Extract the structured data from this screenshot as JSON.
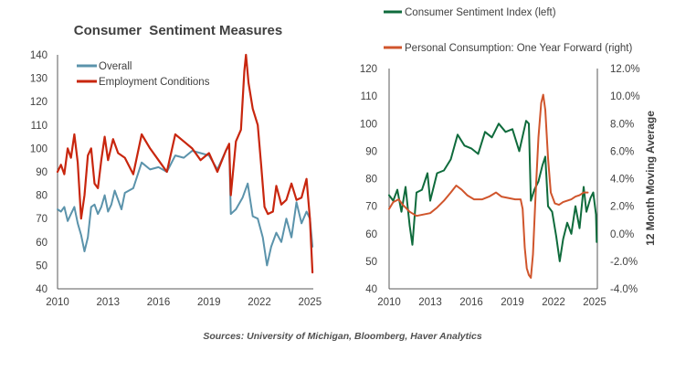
{
  "source": "Sources: University of Michigan, Bloomberg, Haver Analytics",
  "colors": {
    "overall": "#5b93ab",
    "employment": "#c8260e",
    "sentiment_index": "#0f6b3c",
    "consumption": "#d0552c",
    "text": "#404040",
    "axis": "#595959"
  },
  "chart_data": [
    {
      "type": "line",
      "title": "Consumer  Sentiment Measures",
      "xlabel": "",
      "ylabel": "",
      "xlim": [
        2010,
        2025.2
      ],
      "ylim": [
        40,
        140
      ],
      "x_ticks": [
        "2010",
        "2013",
        "2016",
        "2019",
        "2022",
        "2025"
      ],
      "y_ticks": [
        "40",
        "50",
        "60",
        "70",
        "80",
        "90",
        "100",
        "110",
        "120",
        "130",
        "140"
      ],
      "legend_position": "top-left",
      "grid": false,
      "series": [
        {
          "name": "Overall",
          "color_key": "overall",
          "x": [
            2010.0,
            2010.2,
            2010.4,
            2010.6,
            2010.8,
            2011.0,
            2011.2,
            2011.4,
            2011.6,
            2011.8,
            2012.0,
            2012.2,
            2012.4,
            2012.6,
            2012.8,
            2013.0,
            2013.2,
            2013.4,
            2013.6,
            2013.8,
            2014.0,
            2014.5,
            2015.0,
            2015.5,
            2016.0,
            2016.5,
            2017.0,
            2017.5,
            2018.0,
            2018.5,
            2019.0,
            2019.5,
            2020.0,
            2020.2,
            2020.3,
            2020.6,
            2021.0,
            2021.3,
            2021.6,
            2021.9,
            2022.2,
            2022.45,
            2022.7,
            2023.0,
            2023.3,
            2023.6,
            2023.9,
            2024.2,
            2024.5,
            2024.8,
            2025.0,
            2025.15
          ],
          "y": [
            74,
            73,
            75,
            69,
            72,
            75,
            68,
            63,
            56,
            62,
            75,
            76,
            72,
            75,
            80,
            73,
            76,
            82,
            78,
            74,
            81,
            83,
            94,
            91,
            92,
            90,
            97,
            96,
            99,
            98,
            97,
            91,
            99,
            101,
            72,
            74,
            79,
            85,
            71,
            70,
            62,
            50,
            58,
            64,
            60,
            70,
            62,
            77,
            68,
            73,
            70,
            58
          ]
        },
        {
          "name": "Employment Conditions",
          "color_key": "employment",
          "x": [
            2010.0,
            2010.2,
            2010.4,
            2010.6,
            2010.8,
            2011.0,
            2011.2,
            2011.4,
            2011.6,
            2011.8,
            2012.0,
            2012.2,
            2012.4,
            2012.6,
            2012.8,
            2013.0,
            2013.3,
            2013.6,
            2014.0,
            2014.5,
            2015.0,
            2015.5,
            2016.0,
            2016.5,
            2017.0,
            2017.5,
            2018.0,
            2018.5,
            2019.0,
            2019.5,
            2020.0,
            2020.2,
            2020.3,
            2020.6,
            2020.9,
            2021.1,
            2021.2,
            2021.35,
            2021.6,
            2021.9,
            2022.1,
            2022.3,
            2022.5,
            2022.8,
            2023.0,
            2023.3,
            2023.6,
            2023.9,
            2024.2,
            2024.5,
            2024.8,
            2025.0,
            2025.15
          ],
          "y": [
            90,
            93,
            89,
            100,
            96,
            106,
            94,
            70,
            80,
            97,
            100,
            85,
            83,
            95,
            105,
            95,
            104,
            98,
            96,
            89,
            106,
            100,
            95,
            90,
            106,
            103,
            100,
            95,
            98,
            90,
            99,
            102,
            80,
            103,
            108,
            133,
            140,
            128,
            117,
            110,
            93,
            75,
            72,
            73,
            84,
            76,
            78,
            85,
            78,
            79,
            87,
            70,
            47
          ]
        }
      ]
    },
    {
      "type": "line",
      "title": "",
      "xlabel": "",
      "ylabel": "12 Month Moving Average",
      "xlim": [
        2010,
        2025.2
      ],
      "ylim": [
        40,
        120
      ],
      "y2lim": [
        -4.0,
        12.0
      ],
      "x_ticks": [
        "2010",
        "2013",
        "2016",
        "2019",
        "2022",
        "2025"
      ],
      "y_ticks": [
        "40",
        "50",
        "60",
        "70",
        "80",
        "90",
        "100",
        "110",
        "120"
      ],
      "y2_ticks": [
        "-4.0%",
        "-2.0%",
        "0.0%",
        "2.0%",
        "4.0%",
        "6.0%",
        "8.0%",
        "10.0%",
        "12.0%"
      ],
      "legend_position": "top",
      "grid": false,
      "series": [
        {
          "name": "Consumer Sentiment Index (left)",
          "axis": "left",
          "color_key": "sentiment_index",
          "x": [
            2010.0,
            2010.3,
            2010.6,
            2010.9,
            2011.2,
            2011.5,
            2011.7,
            2012.0,
            2012.4,
            2012.8,
            2013.0,
            2013.5,
            2014.0,
            2014.5,
            2015.0,
            2015.5,
            2016.0,
            2016.5,
            2017.0,
            2017.5,
            2018.0,
            2018.5,
            2019.0,
            2019.5,
            2020.0,
            2020.2,
            2020.35,
            2020.6,
            2020.9,
            2021.2,
            2021.4,
            2021.6,
            2021.9,
            2022.2,
            2022.45,
            2022.7,
            2023.0,
            2023.3,
            2023.6,
            2023.9,
            2024.2,
            2024.4,
            2024.7,
            2024.9,
            2025.1,
            2025.15
          ],
          "y": [
            74,
            72,
            76,
            68,
            77,
            63,
            56,
            75,
            76,
            82,
            72,
            82,
            83,
            87,
            96,
            92,
            91,
            89,
            97,
            95,
            100,
            97,
            98,
            90,
            101,
            100,
            72,
            76,
            79,
            85,
            88,
            70,
            68,
            59,
            50,
            58,
            64,
            60,
            70,
            62,
            77,
            68,
            73,
            75,
            67,
            57
          ]
        },
        {
          "name": "Personal Consumption: One Year Forward (right)",
          "axis": "right",
          "color_key": "consumption",
          "x": [
            2010.0,
            2010.3,
            2010.7,
            2011.0,
            2011.5,
            2012.0,
            2012.5,
            2013.0,
            2013.5,
            2014.0,
            2014.5,
            2014.9,
            2015.3,
            2015.7,
            2016.2,
            2016.8,
            2017.3,
            2017.8,
            2018.2,
            2018.7,
            2019.2,
            2019.6,
            2019.75,
            2019.9,
            2020.05,
            2020.2,
            2020.35,
            2020.5,
            2020.7,
            2020.9,
            2021.1,
            2021.25,
            2021.4,
            2021.6,
            2021.8,
            2022.1,
            2022.4,
            2022.7,
            2023.0,
            2023.3,
            2023.6,
            2023.9,
            2024.2,
            2024.5
          ],
          "y": [
            1.8,
            2.3,
            2.5,
            2.1,
            1.6,
            1.3,
            1.4,
            1.5,
            1.9,
            2.4,
            3.0,
            3.5,
            3.2,
            2.8,
            2.5,
            2.5,
            2.7,
            3.0,
            2.7,
            2.6,
            2.5,
            2.5,
            1.8,
            -1.0,
            -2.5,
            -3.0,
            -3.2,
            -1.5,
            3.0,
            7.0,
            9.5,
            10.1,
            9.0,
            5.5,
            3.0,
            2.2,
            2.1,
            2.3,
            2.4,
            2.5,
            2.7,
            2.8,
            3.0,
            3.0
          ]
        }
      ]
    }
  ]
}
